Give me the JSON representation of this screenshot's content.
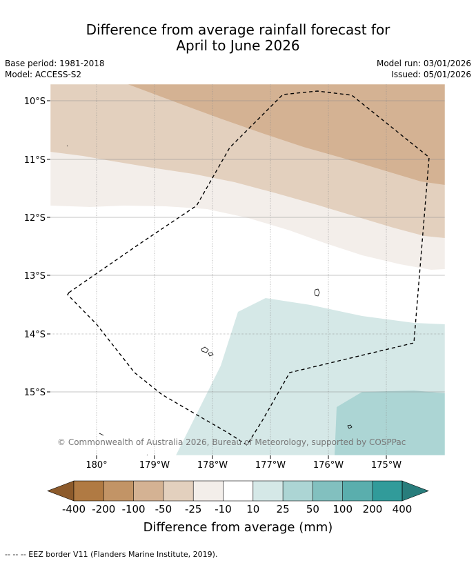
{
  "title": {
    "line1": "Difference from average rainfall forecast for",
    "line2": "April to June 2026"
  },
  "meta": {
    "base_period": "Base period: 1981-2018",
    "model": "Model: ACCESS-S2",
    "model_run": "Model run: 03/01/2026",
    "issued": "Issued: 05/01/2026"
  },
  "map": {
    "lat_labels": [
      "10°S",
      "11°S",
      "12°S",
      "13°S",
      "14°S",
      "15°S"
    ],
    "lon_labels": [
      "180°",
      "179°W",
      "178°W",
      "177°W",
      "176°W",
      "175°W"
    ],
    "copyright": "© Commonwealth of Australia 2026, Bureau of Meteorology, supported by COSPPac",
    "eez_border_style": "dashed"
  },
  "legend": {
    "tick_labels": [
      "-400",
      "-200",
      "-100",
      "-50",
      "-25",
      "-10",
      "10",
      "25",
      "50",
      "100",
      "200",
      "400"
    ],
    "colors": [
      "#8c5a2b",
      "#b07a43",
      "#c29466",
      "#d4b293",
      "#e3d0be",
      "#f3eeea",
      "#ffffff",
      "#d5e8e7",
      "#acd5d4",
      "#82c0bf",
      "#5aaead",
      "#319b9a",
      "#287d7c"
    ],
    "title": "Difference from average (mm)"
  },
  "footer": {
    "note": "--  --  -- EEZ border V11 (Flanders Marine Institute, 2019)."
  }
}
